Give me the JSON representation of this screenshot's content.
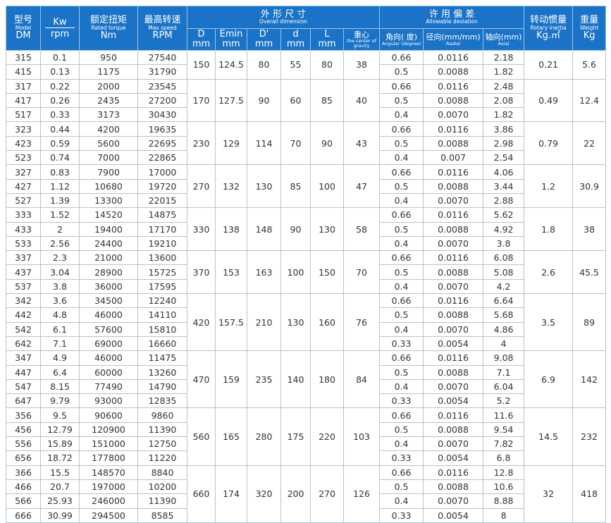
{
  "header": {
    "model": [
      "型号",
      "Model",
      "DM"
    ],
    "kw": [
      "Kw",
      "rpm"
    ],
    "torque": [
      "额定扭矩",
      "Rated torque",
      "Nm"
    ],
    "speed": [
      "最高转速",
      "Max speed",
      "RPM"
    ],
    "dimension": {
      "title": [
        "外 形 尺 寸",
        "Overall dimension"
      ],
      "columns": [
        [
          "D",
          "mm"
        ],
        [
          "Emin",
          "mm"
        ],
        [
          "D'",
          "mm"
        ],
        [
          "d",
          "mm"
        ],
        [
          "L",
          "mm"
        ],
        [
          "重心",
          "the center of gravity"
        ]
      ]
    },
    "deviation": {
      "title": [
        "许 用 偏 差",
        "Allowable deviation"
      ],
      "columns": [
        [
          "角向( 度)",
          "Angular (degree)"
        ],
        [
          "径向(mm/mm)",
          "Radial"
        ],
        [
          "轴向(mm)",
          "Axial"
        ]
      ]
    },
    "inertia": [
      "转动惯量",
      "Rotary inertia",
      "Kg.㎡"
    ],
    "weight": [
      "重量",
      "Weight",
      "Kg"
    ]
  },
  "groups": [
    {
      "rows": [
        [
          "315",
          "0.1",
          "950",
          "27540",
          "0.66",
          "0.0116",
          "2.18"
        ],
        [
          "415",
          "0.13",
          "1175",
          "31790",
          "0.5",
          "0.0088",
          "1.82"
        ]
      ],
      "shared": [
        "150",
        "124.5",
        "80",
        "55",
        "80",
        "38",
        "0.21",
        "5.6"
      ]
    },
    {
      "rows": [
        [
          "317",
          "0.22",
          "2000",
          "23545",
          "0.66",
          "0.0116",
          "2.48"
        ],
        [
          "417",
          "0.26",
          "2435",
          "27200",
          "0.5",
          "0.0088",
          "2.08"
        ],
        [
          "517",
          "0.33",
          "3173",
          "30430",
          "0.4",
          "0.0070",
          "1.82"
        ]
      ],
      "shared": [
        "170",
        "127.5",
        "90",
        "60",
        "85",
        "40",
        "0.49",
        "12.4"
      ]
    },
    {
      "rows": [
        [
          "323",
          "0.44",
          "4200",
          "19635",
          "0.66",
          "0.0116",
          "3.86"
        ],
        [
          "423",
          "0.59",
          "5600",
          "22695",
          "0.5",
          "0.0088",
          "2.98"
        ],
        [
          "523",
          "0.74",
          "7000",
          "22865",
          "0.4",
          "0.007",
          "2.54"
        ]
      ],
      "shared": [
        "230",
        "129",
        "114",
        "70",
        "90",
        "43",
        "0.79",
        "22"
      ]
    },
    {
      "rows": [
        [
          "327",
          "0.83",
          "7900",
          "17000",
          "0.66",
          "0.0116",
          "4.06"
        ],
        [
          "427",
          "1.12",
          "10680",
          "19720",
          "0.5",
          "0.0088",
          "3.44"
        ],
        [
          "527",
          "1.39",
          "13300",
          "22015",
          "0.4",
          "0.0070",
          "2.88"
        ]
      ],
      "shared": [
        "270",
        "132",
        "130",
        "85",
        "100",
        "47",
        "1.2",
        "30.9"
      ]
    },
    {
      "rows": [
        [
          "333",
          "1.52",
          "14520",
          "14875",
          "0.66",
          "0.0116",
          "5.62"
        ],
        [
          "433",
          "2",
          "19400",
          "17170",
          "0.5",
          "0.0088",
          "4.92"
        ],
        [
          "533",
          "2.56",
          "24400",
          "19210",
          "0.4",
          "0.0070",
          "3.8"
        ]
      ],
      "shared": [
        "330",
        "138",
        "148",
        "90",
        "130",
        "58",
        "1.8",
        "38"
      ]
    },
    {
      "rows": [
        [
          "337",
          "2.3",
          "21000",
          "13600",
          "0.66",
          "0.0116",
          "6.08"
        ],
        [
          "437",
          "3.04",
          "28900",
          "15725",
          "0.5",
          "0.0088",
          "5.08"
        ],
        [
          "537",
          "3.8",
          "36000",
          "17595",
          "0.4",
          "0.0070",
          "4.2"
        ]
      ],
      "shared": [
        "370",
        "153",
        "163",
        "100",
        "150",
        "70",
        "2.6",
        "45.5"
      ]
    },
    {
      "rows": [
        [
          "342",
          "3.6",
          "34500",
          "12240",
          "0.66",
          "0.0116",
          "6.64"
        ],
        [
          "442",
          "4.8",
          "46000",
          "14110",
          "0.5",
          "0.0088",
          "5.68"
        ],
        [
          "542",
          "6.1",
          "57600",
          "15810",
          "0.4",
          "0.0070",
          "4.86"
        ],
        [
          "642",
          "7.1",
          "69000",
          "16660",
          "0.33",
          "0.0054",
          "4"
        ]
      ],
      "shared": [
        "420",
        "157.5",
        "210",
        "130",
        "160",
        "76",
        "3.5",
        "89"
      ]
    },
    {
      "rows": [
        [
          "347",
          "4.9",
          "46000",
          "11475",
          "0.66",
          "0.0116",
          "9.08"
        ],
        [
          "447",
          "6.4",
          "60000",
          "13260",
          "0.5",
          "0.0088",
          "7.1"
        ],
        [
          "547",
          "8.15",
          "77490",
          "14790",
          "0.4",
          "0.0070",
          "6.04"
        ],
        [
          "647",
          "9.79",
          "93000",
          "12835",
          "0.33",
          "0.0054",
          "5.2"
        ]
      ],
      "shared": [
        "470",
        "159",
        "235",
        "140",
        "180",
        "84",
        "6.9",
        "142"
      ]
    },
    {
      "rows": [
        [
          "356",
          "9.5",
          "90600",
          "9860",
          "0.66",
          "0.0116",
          "11.6"
        ],
        [
          "456",
          "12.79",
          "120900",
          "11390",
          "0.5",
          "0.0088",
          "9.54"
        ],
        [
          "556",
          "15.89",
          "151000",
          "12750",
          "0.4",
          "0.0070",
          "7.82"
        ],
        [
          "656",
          "18.72",
          "177800",
          "11220",
          "0.33",
          "0.0054",
          "6.8"
        ]
      ],
      "shared": [
        "560",
        "165",
        "280",
        "175",
        "220",
        "103",
        "14.5",
        "232"
      ]
    },
    {
      "rows": [
        [
          "366",
          "15.5",
          "148570",
          "8840",
          "0.66",
          "0.0116",
          "12.8"
        ],
        [
          "466",
          "20.7",
          "197000",
          "10200",
          "0.5",
          "0.0088",
          "10.6"
        ],
        [
          "566",
          "25.93",
          "246000",
          "11390",
          "0.4",
          "0.0070",
          "8.88"
        ],
        [
          "666",
          "30.99",
          "294500",
          "8585",
          "0.33",
          "0.0054",
          "8"
        ]
      ],
      "shared": [
        "660",
        "174",
        "320",
        "200",
        "270",
        "126",
        "32",
        "418"
      ]
    }
  ]
}
